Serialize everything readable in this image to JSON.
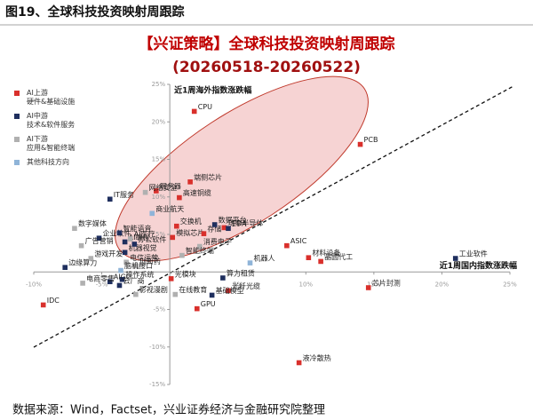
{
  "header": {
    "title": "图19、全球科技投资映射周跟踪"
  },
  "chart_data": {
    "type": "scatter",
    "title": "【兴证策略】全球科技投资映射周跟踪",
    "subtitle": "(20260518-20260522)",
    "y_label": "近1周海外指数涨跌幅",
    "x_label": "近1周国内指数涨跌幅",
    "xlim": [
      -10,
      25
    ],
    "ylim": [
      -15,
      25
    ],
    "xticks": [
      {
        "value": -10,
        "label": "-10%"
      },
      {
        "value": -5,
        "label": "-5%"
      },
      {
        "value": 5,
        "label": "5%"
      },
      {
        "value": 10,
        "label": "10%"
      },
      {
        "value": 15,
        "label": "15%"
      },
      {
        "value": 20,
        "label": "20%"
      },
      {
        "value": 25,
        "label": "25%"
      }
    ],
    "yticks": [
      {
        "value": -15,
        "label": "-15%"
      },
      {
        "value": -10,
        "label": "-10%"
      },
      {
        "value": -5,
        "label": "-5%"
      },
      {
        "value": 5,
        "label": "5%"
      },
      {
        "value": 10,
        "label": "10%"
      },
      {
        "value": 15,
        "label": "15%"
      },
      {
        "value": 20,
        "label": "20%"
      },
      {
        "value": 25,
        "label": "25%"
      }
    ],
    "series": [
      {
        "name": "AI上游\n硬件&基础设施",
        "color": "#d9302c",
        "labels": [
          "CPU",
          "PCB",
          "端侧芯片",
          "服务器",
          "高速铜缆",
          "功率半导体",
          "交换机",
          "模拟芯片",
          "存储",
          "ASIC",
          "材料设备",
          "晶圆代工",
          "光模块",
          "光纤光缆",
          "GPU",
          "液冷散热",
          "芯片封测",
          "IDC"
        ],
        "x": [
          1.8,
          14.0,
          1.5,
          -1.0,
          0.7,
          4.0,
          0.5,
          0.2,
          2.5,
          8.6,
          10.2,
          11.1,
          0.1,
          4.3,
          2.0,
          9.5,
          14.6,
          -9.3
        ],
        "values": [
          21.4,
          17.0,
          12.0,
          10.8,
          9.9,
          5.9,
          6.1,
          4.6,
          5.1,
          3.5,
          1.9,
          1.4,
          -0.9,
          -2.5,
          -4.9,
          -12.1,
          -2.1,
          -4.4
        ]
      },
      {
        "name": "AI中游\n技术&软件服务",
        "color": "#1f2f5e",
        "labels": [
          "EDA",
          "数据平台",
          "算力租赁",
          "基础模型",
          "工业软件",
          "IT服务",
          "企业软件",
          "智能语音",
          "机器视觉",
          "AI编程",
          "办公软件",
          "操作系统",
          "AIGC",
          "云厂商",
          "边缘算力"
        ],
        "x": [
          4.3,
          3.3,
          3.9,
          3.1,
          21.0,
          -4.4,
          -5.2,
          -3.7,
          -3.3,
          -3.3,
          -2.6,
          -3.5,
          -4.4,
          -3.7,
          -7.7
        ],
        "values": [
          5.8,
          6.3,
          -0.8,
          -3.1,
          1.8,
          9.7,
          4.5,
          5.2,
          2.6,
          4.0,
          3.7,
          -1.0,
          -1.3,
          -1.8,
          0.6
        ]
      },
      {
        "name": "AI下游\n应用&智能终端",
        "color": "#b0b0b0",
        "labels": [
          "数字媒体",
          "广告营销",
          "游戏开发",
          "电信运营",
          "电商零售",
          "影视漫剧",
          "在线教育",
          "AI医疗",
          "创新药",
          "消费电子",
          "智能终端",
          "网络安全"
        ],
        "x": [
          -7.0,
          -6.5,
          -5.8,
          -3.2,
          -6.4,
          -2.5,
          0.4,
          -2.9,
          -2.5,
          2.2,
          0.9,
          -1.8
        ],
        "values": [
          5.8,
          3.5,
          1.8,
          1.3,
          -1.5,
          -3.0,
          -3.0,
          4.4,
          0.8,
          3.4,
          2.2,
          10.6
        ]
      },
      {
        "name": "其他科技方向",
        "color": "#8fb4d8",
        "labels": [
          "机器人",
          "商业航天",
          "脑机接口"
        ],
        "x": [
          5.9,
          -1.3,
          -3.6
        ],
        "values": [
          1.2,
          7.8,
          0.2
        ]
      }
    ]
  },
  "footer": {
    "source": "数据来源：Wind，Factset，兴业证券经济与金融研究院整理"
  }
}
